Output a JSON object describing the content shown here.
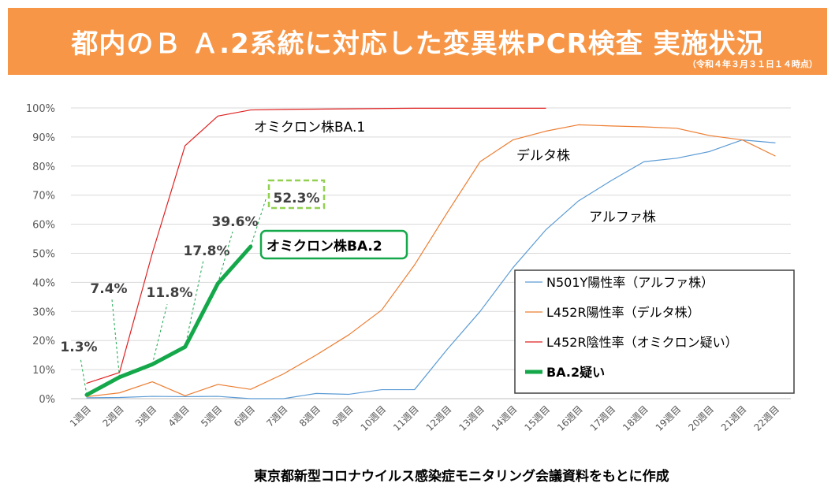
{
  "header": {
    "title": "都内のＢ Ａ.2系統に対応した変異株PCR検査 実施状況",
    "subtitle": "（令和４年３月３１日１４時点）",
    "background_color": "#F79646"
  },
  "source_note": "東京都新型コロナウイルス感染症モニタリング会議資料をもとに作成",
  "chart_data": {
    "type": "line",
    "title": "",
    "xlabel": "",
    "ylabel": "",
    "ylim": [
      0,
      100
    ],
    "y_tick_format": "percent",
    "y_ticks": [
      "0%",
      "10%",
      "20%",
      "30%",
      "40%",
      "50%",
      "60%",
      "70%",
      "80%",
      "90%",
      "100%"
    ],
    "categories": [
      "1週目",
      "2週目",
      "3週目",
      "4週目",
      "5週目",
      "6週目",
      "7週目",
      "8週目",
      "9週目",
      "10週目",
      "11週目",
      "12週目",
      "13週目",
      "14週目",
      "15週目",
      "16週目",
      "17週目",
      "18週目",
      "19週目",
      "20週目",
      "21週目",
      "22週目"
    ],
    "series": [
      {
        "name": "N501Y陽性率（アルファ株）",
        "label_on_chart": "アルファ株",
        "color": "#5B9BD5",
        "width": 1.2,
        "values": [
          0.3,
          0.4,
          0.8,
          0.7,
          0.8,
          0,
          0,
          1.8,
          1.5,
          3.1,
          3.1,
          17,
          30,
          45,
          58,
          68,
          75,
          81.5,
          82.7,
          85,
          89,
          88
        ]
      },
      {
        "name": "L452R陽性率（デルタ株）",
        "label_on_chart": "デルタ株",
        "color": "#ED7D31",
        "width": 1.2,
        "values": [
          0.7,
          2,
          5.8,
          1,
          4.9,
          3.2,
          8.5,
          15,
          22,
          30.5,
          46,
          64,
          81.5,
          89,
          92,
          94.2,
          93.8,
          93.5,
          93,
          90.5,
          89,
          83.5
        ]
      },
      {
        "name": "L452R陰性率（オミクロン疑い）",
        "label_on_chart": "オミクロン株BA.1",
        "color": "#E02020",
        "width": 1.2,
        "values": [
          5.3,
          9,
          50,
          87,
          97.2,
          99.3,
          99.5,
          99.6,
          99.7,
          99.8,
          99.9,
          99.9,
          99.9,
          99.9,
          99.9,
          null,
          null,
          null,
          null,
          null,
          null,
          null
        ]
      },
      {
        "name": "BA.2疑い",
        "label_on_chart": "オミクロン株BA.2",
        "color": "#14A84A",
        "width": 5,
        "values": [
          1.3,
          7.4,
          11.8,
          17.8,
          39.6,
          52.3,
          null,
          null,
          null,
          null,
          null,
          null,
          null,
          null,
          null,
          null,
          null,
          null,
          null,
          null,
          null,
          null
        ],
        "data_labels": [
          "1.3%",
          "7.4%",
          "11.8%",
          "17.8%",
          "39.6%",
          "52.3%"
        ]
      }
    ],
    "legend_position": "right-middle",
    "grid": true
  }
}
